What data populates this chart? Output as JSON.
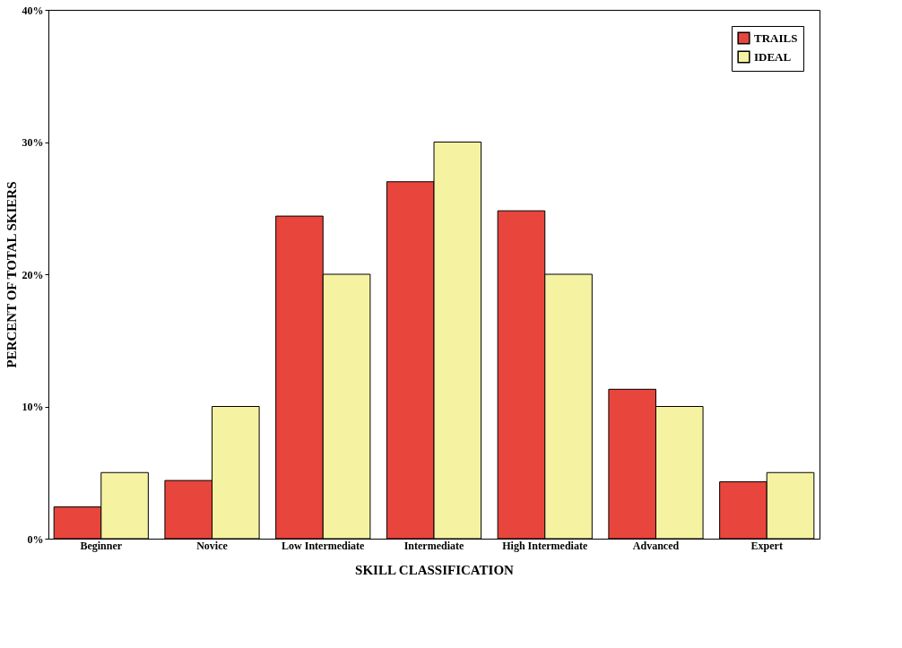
{
  "chart_data": {
    "type": "bar",
    "xlabel": "SKILL CLASSIFICATION",
    "ylabel": "PERCENT OF TOTAL SKIERS",
    "categories": [
      "Beginner",
      "Novice",
      "Low Intermediate",
      "Intermediate",
      "High Intermediate",
      "Advanced",
      "Expert"
    ],
    "series": [
      {
        "name": "TRAILS",
        "color": "#e8453c",
        "values": [
          2.4,
          4.4,
          24.4,
          27.0,
          24.8,
          11.3,
          4.3
        ]
      },
      {
        "name": "IDEAL",
        "color": "#f5f3a2",
        "values": [
          5.0,
          10.0,
          20.0,
          30.0,
          20.0,
          10.0,
          5.0
        ]
      }
    ],
    "ylim": [
      0,
      40
    ],
    "yticks": [
      {
        "value": 0,
        "label": "0%"
      },
      {
        "value": 10,
        "label": "10%"
      },
      {
        "value": 20,
        "label": "20%"
      },
      {
        "value": 30,
        "label": "30%"
      },
      {
        "value": 40,
        "label": "40%"
      }
    ],
    "grid": false,
    "legend": "top right"
  }
}
